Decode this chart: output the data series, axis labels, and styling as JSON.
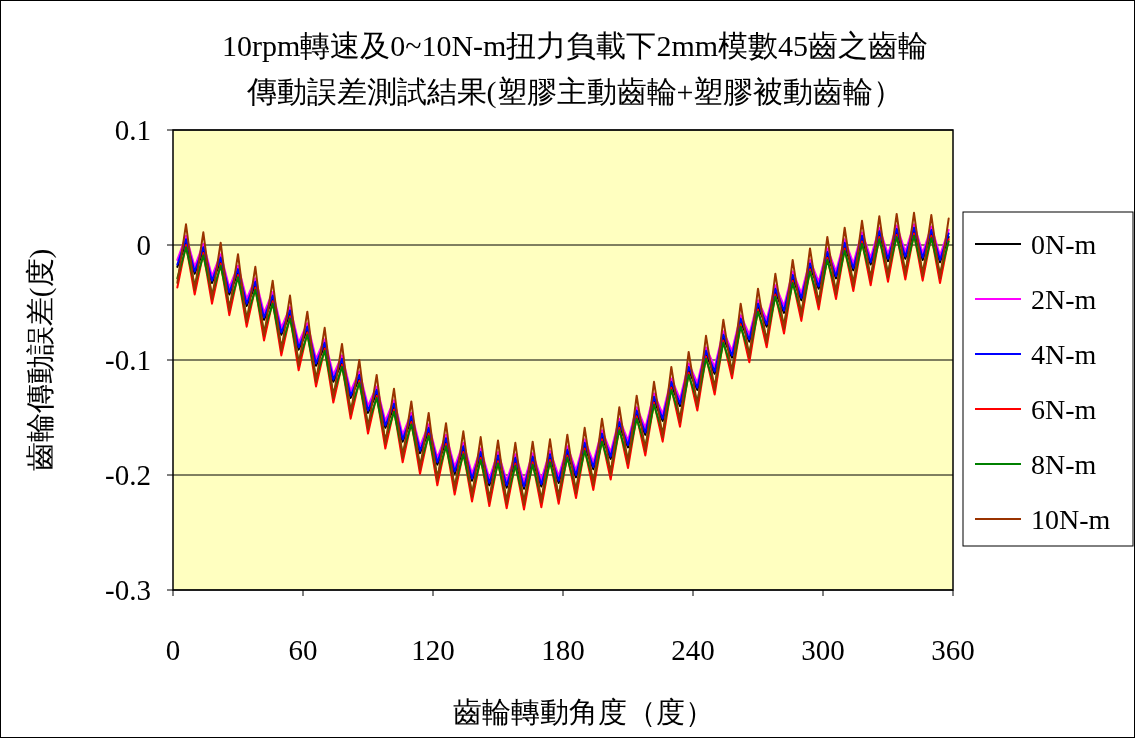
{
  "chart_data": {
    "type": "line",
    "title": "10rpm轉速及0~10N-m扭力負載下2mm模數45齒之齒輪",
    "subtitle": "傳動誤差測試結果(塑膠主動齒輪+塑膠被動齒輪）",
    "xlabel": "齒輪轉動角度（度）",
    "ylabel": "齒輪傳動誤差(度)",
    "x": [
      2,
      6,
      10,
      14,
      18,
      22,
      26,
      30,
      34,
      38,
      42,
      46,
      50,
      54,
      58,
      62,
      66,
      70,
      74,
      78,
      82,
      86,
      90,
      94,
      98,
      102,
      106,
      110,
      114,
      118,
      122,
      126,
      130,
      134,
      138,
      142,
      146,
      150,
      154,
      158,
      162,
      166,
      170,
      174,
      178,
      182,
      186,
      190,
      194,
      198,
      202,
      206,
      210,
      214,
      218,
      222,
      226,
      230,
      234,
      238,
      242,
      246,
      250,
      254,
      258,
      262,
      266,
      270,
      274,
      278,
      282,
      286,
      290,
      294,
      298,
      302,
      306,
      310,
      314,
      318,
      322,
      326,
      330,
      334,
      338,
      342,
      346,
      350,
      354,
      358
    ],
    "xlim": [
      0,
      360
    ],
    "xticks": [
      0,
      60,
      120,
      180,
      240,
      300,
      360
    ],
    "ylim": [
      -0.3,
      0.1
    ],
    "yticks": [
      -0.3,
      -0.2,
      -0.1,
      0,
      0.1
    ],
    "grid": "y",
    "legend": "right",
    "line_style": "solid",
    "series": [
      {
        "name": "0N-m",
        "color": "#000000",
        "values": [
          -0.019,
          0.002,
          -0.025,
          -0.005,
          -0.033,
          -0.014,
          -0.043,
          -0.024,
          -0.053,
          -0.035,
          -0.065,
          -0.047,
          -0.078,
          -0.06,
          -0.091,
          -0.074,
          -0.105,
          -0.088,
          -0.119,
          -0.102,
          -0.133,
          -0.116,
          -0.146,
          -0.129,
          -0.159,
          -0.141,
          -0.171,
          -0.152,
          -0.181,
          -0.162,
          -0.191,
          -0.171,
          -0.199,
          -0.178,
          -0.205,
          -0.183,
          -0.209,
          -0.186,
          -0.211,
          -0.188,
          -0.212,
          -0.187,
          -0.21,
          -0.185,
          -0.207,
          -0.181,
          -0.202,
          -0.175,
          -0.195,
          -0.167,
          -0.186,
          -0.157,
          -0.176,
          -0.147,
          -0.165,
          -0.135,
          -0.153,
          -0.122,
          -0.14,
          -0.109,
          -0.126,
          -0.095,
          -0.112,
          -0.081,
          -0.098,
          -0.067,
          -0.084,
          -0.054,
          -0.071,
          -0.041,
          -0.059,
          -0.029,
          -0.048,
          -0.019,
          -0.038,
          -0.009,
          -0.029,
          -0.001,
          -0.022,
          0.005,
          -0.017,
          0.009,
          -0.014,
          0.011,
          -0.012,
          0.012,
          -0.013,
          0.01,
          -0.015,
          0.007
        ]
      },
      {
        "name": "2N-m",
        "color": "#ff00ff",
        "values": [
          -0.013,
          0.008,
          -0.019,
          0.001,
          -0.027,
          -0.008,
          -0.037,
          -0.018,
          -0.047,
          -0.029,
          -0.059,
          -0.041,
          -0.072,
          -0.054,
          -0.085,
          -0.068,
          -0.099,
          -0.082,
          -0.113,
          -0.096,
          -0.127,
          -0.11,
          -0.14,
          -0.123,
          -0.153,
          -0.135,
          -0.165,
          -0.146,
          -0.175,
          -0.156,
          -0.185,
          -0.165,
          -0.193,
          -0.172,
          -0.199,
          -0.177,
          -0.203,
          -0.18,
          -0.205,
          -0.182,
          -0.206,
          -0.181,
          -0.204,
          -0.179,
          -0.201,
          -0.175,
          -0.196,
          -0.169,
          -0.189,
          -0.161,
          -0.18,
          -0.151,
          -0.17,
          -0.141,
          -0.159,
          -0.129,
          -0.147,
          -0.116,
          -0.134,
          -0.103,
          -0.12,
          -0.089,
          -0.106,
          -0.075,
          -0.092,
          -0.061,
          -0.078,
          -0.048,
          -0.065,
          -0.035,
          -0.053,
          -0.023,
          -0.042,
          -0.013,
          -0.032,
          -0.003,
          -0.023,
          0.005,
          -0.016,
          0.011,
          -0.011,
          0.015,
          -0.008,
          0.017,
          -0.006,
          0.018,
          -0.007,
          0.016,
          -0.009,
          0.013
        ]
      },
      {
        "name": "4N-m",
        "color": "#0000ff",
        "values": [
          -0.017,
          0.005,
          -0.023,
          -0.002,
          -0.031,
          -0.011,
          -0.041,
          -0.021,
          -0.051,
          -0.032,
          -0.063,
          -0.044,
          -0.076,
          -0.057,
          -0.089,
          -0.071,
          -0.103,
          -0.085,
          -0.117,
          -0.099,
          -0.131,
          -0.113,
          -0.144,
          -0.126,
          -0.157,
          -0.138,
          -0.169,
          -0.149,
          -0.179,
          -0.159,
          -0.189,
          -0.168,
          -0.197,
          -0.175,
          -0.203,
          -0.18,
          -0.207,
          -0.183,
          -0.209,
          -0.185,
          -0.21,
          -0.184,
          -0.208,
          -0.182,
          -0.205,
          -0.178,
          -0.2,
          -0.172,
          -0.193,
          -0.164,
          -0.184,
          -0.154,
          -0.174,
          -0.144,
          -0.163,
          -0.132,
          -0.151,
          -0.119,
          -0.138,
          -0.106,
          -0.124,
          -0.092,
          -0.11,
          -0.078,
          -0.096,
          -0.064,
          -0.082,
          -0.051,
          -0.069,
          -0.038,
          -0.057,
          -0.026,
          -0.046,
          -0.016,
          -0.036,
          -0.006,
          -0.027,
          0.002,
          -0.02,
          0.008,
          -0.015,
          0.012,
          -0.012,
          0.014,
          -0.01,
          0.015,
          -0.011,
          0.013,
          -0.013,
          0.01
        ]
      },
      {
        "name": "6N-m",
        "color": "#ff0000",
        "values": [
          -0.037,
          0.0,
          -0.043,
          -0.007,
          -0.051,
          -0.016,
          -0.061,
          -0.026,
          -0.071,
          -0.037,
          -0.083,
          -0.049,
          -0.096,
          -0.062,
          -0.109,
          -0.076,
          -0.123,
          -0.09,
          -0.137,
          -0.104,
          -0.151,
          -0.118,
          -0.164,
          -0.131,
          -0.177,
          -0.143,
          -0.189,
          -0.154,
          -0.199,
          -0.164,
          -0.209,
          -0.173,
          -0.217,
          -0.18,
          -0.223,
          -0.185,
          -0.227,
          -0.188,
          -0.229,
          -0.19,
          -0.23,
          -0.189,
          -0.228,
          -0.187,
          -0.225,
          -0.183,
          -0.22,
          -0.177,
          -0.213,
          -0.169,
          -0.204,
          -0.159,
          -0.194,
          -0.149,
          -0.183,
          -0.137,
          -0.171,
          -0.124,
          -0.158,
          -0.111,
          -0.144,
          -0.097,
          -0.13,
          -0.083,
          -0.116,
          -0.069,
          -0.102,
          -0.056,
          -0.089,
          -0.043,
          -0.077,
          -0.031,
          -0.066,
          -0.021,
          -0.056,
          -0.011,
          -0.047,
          -0.003,
          -0.04,
          0.003,
          -0.035,
          0.007,
          -0.032,
          0.009,
          -0.03,
          0.01,
          -0.031,
          0.008,
          -0.033,
          0.005
        ]
      },
      {
        "name": "8N-m",
        "color": "#008000",
        "values": [
          -0.029,
          -0.002,
          -0.035,
          -0.009,
          -0.043,
          -0.018,
          -0.053,
          -0.028,
          -0.063,
          -0.039,
          -0.075,
          -0.051,
          -0.088,
          -0.064,
          -0.101,
          -0.078,
          -0.115,
          -0.092,
          -0.129,
          -0.106,
          -0.143,
          -0.12,
          -0.156,
          -0.133,
          -0.169,
          -0.145,
          -0.181,
          -0.156,
          -0.191,
          -0.166,
          -0.201,
          -0.175,
          -0.209,
          -0.182,
          -0.215,
          -0.187,
          -0.219,
          -0.19,
          -0.221,
          -0.192,
          -0.222,
          -0.191,
          -0.22,
          -0.189,
          -0.217,
          -0.185,
          -0.212,
          -0.179,
          -0.205,
          -0.171,
          -0.196,
          -0.161,
          -0.186,
          -0.151,
          -0.175,
          -0.139,
          -0.163,
          -0.126,
          -0.15,
          -0.113,
          -0.136,
          -0.099,
          -0.122,
          -0.085,
          -0.108,
          -0.071,
          -0.094,
          -0.058,
          -0.081,
          -0.045,
          -0.069,
          -0.033,
          -0.058,
          -0.023,
          -0.048,
          -0.013,
          -0.039,
          -0.005,
          -0.032,
          0.001,
          -0.027,
          0.005,
          -0.024,
          0.007,
          -0.022,
          0.008,
          -0.023,
          0.006,
          -0.025,
          0.003
        ]
      },
      {
        "name": "10N-m",
        "color": "#993300",
        "values": [
          -0.033,
          0.018,
          -0.039,
          0.011,
          -0.047,
          0.002,
          -0.057,
          -0.008,
          -0.067,
          -0.019,
          -0.079,
          -0.031,
          -0.092,
          -0.044,
          -0.105,
          -0.058,
          -0.119,
          -0.072,
          -0.133,
          -0.086,
          -0.147,
          -0.1,
          -0.16,
          -0.113,
          -0.173,
          -0.125,
          -0.185,
          -0.136,
          -0.195,
          -0.146,
          -0.205,
          -0.155,
          -0.213,
          -0.162,
          -0.219,
          -0.167,
          -0.223,
          -0.17,
          -0.225,
          -0.172,
          -0.226,
          -0.171,
          -0.224,
          -0.169,
          -0.221,
          -0.165,
          -0.216,
          -0.159,
          -0.209,
          -0.151,
          -0.2,
          -0.141,
          -0.19,
          -0.131,
          -0.179,
          -0.119,
          -0.167,
          -0.106,
          -0.154,
          -0.093,
          -0.14,
          -0.079,
          -0.126,
          -0.065,
          -0.112,
          -0.051,
          -0.098,
          -0.038,
          -0.085,
          -0.025,
          -0.073,
          -0.013,
          -0.062,
          -0.003,
          -0.052,
          0.007,
          -0.043,
          0.015,
          -0.036,
          0.021,
          -0.031,
          0.025,
          -0.028,
          0.027,
          -0.026,
          0.028,
          -0.027,
          0.026,
          -0.029,
          0.023
        ]
      }
    ]
  }
}
